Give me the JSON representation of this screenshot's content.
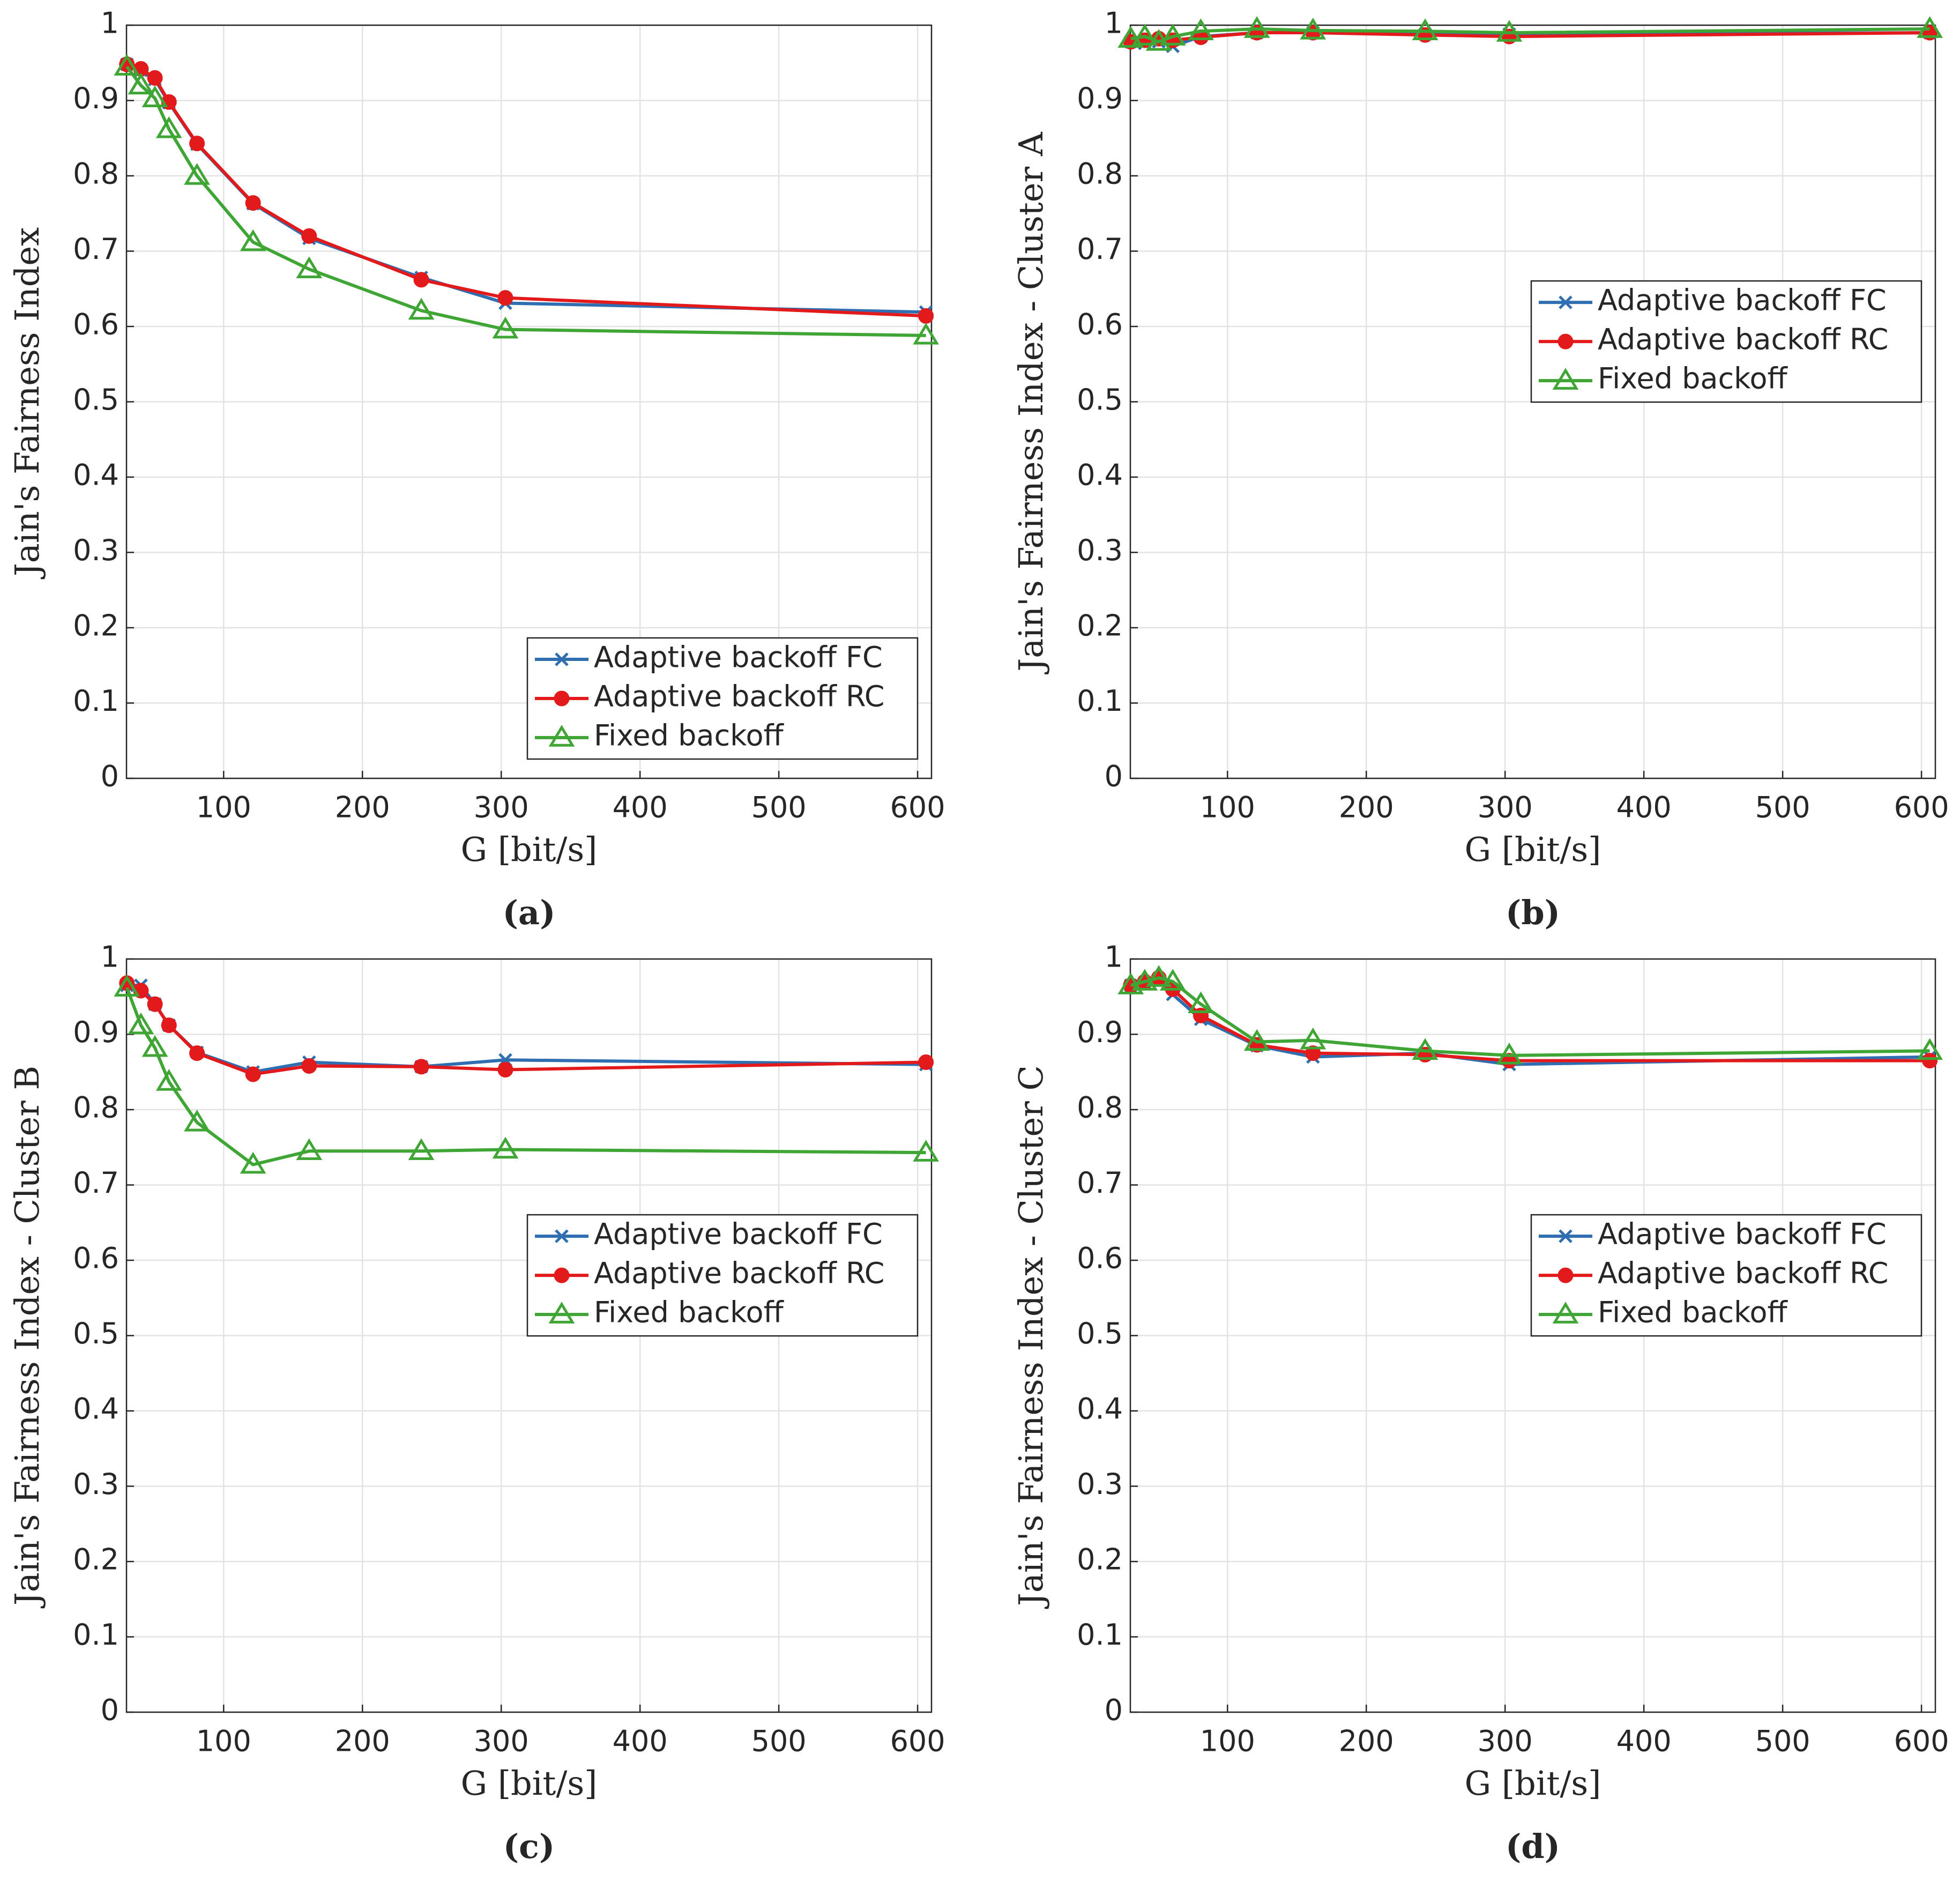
{
  "chart_data": [
    {
      "type": "line",
      "caption": "(a)",
      "xlabel": "G [bit/s]",
      "ylabel": "Jain's Fairness Index",
      "x": [
        30.3,
        40.4,
        50.5,
        60.6,
        80.8,
        121.2,
        161.6,
        242.4,
        303,
        606
      ],
      "series": [
        {
          "name": "Adaptive backoff FC",
          "color": "#2f6eb0",
          "marker": "x",
          "values": [
            0.948,
            0.94,
            0.928,
            0.897,
            0.842,
            0.763,
            0.717,
            0.665,
            0.631,
            0.619
          ]
        },
        {
          "name": "Adaptive backoff RC",
          "color": "#e31a1c",
          "marker": "circle",
          "values": [
            0.948,
            0.942,
            0.93,
            0.898,
            0.843,
            0.764,
            0.72,
            0.662,
            0.638,
            0.614
          ]
        },
        {
          "name": "Fixed backoff",
          "color": "#3fa535",
          "marker": "triangle",
          "values": [
            0.945,
            0.92,
            0.903,
            0.862,
            0.8,
            0.712,
            0.676,
            0.621,
            0.596,
            0.588
          ]
        }
      ],
      "xlim": [
        30,
        610
      ],
      "ylim": [
        0,
        1
      ],
      "xticks": [
        100,
        200,
        300,
        400,
        500,
        600
      ],
      "yticks": [
        0,
        0.1,
        0.2,
        0.3,
        0.4,
        0.5,
        0.6,
        0.7,
        0.8,
        0.9,
        1
      ],
      "grid": true,
      "legend": "lower right"
    },
    {
      "type": "line",
      "caption": "(b)",
      "xlabel": "G [bit/s]",
      "ylabel": "Jain's Fairness Index - Cluster A",
      "x": [
        30.3,
        40.4,
        50.5,
        60.6,
        80.8,
        121.2,
        161.6,
        242.4,
        303,
        606
      ],
      "series": [
        {
          "name": "Adaptive backoff FC",
          "color": "#2f6eb0",
          "marker": "x",
          "values": [
            0.978,
            0.976,
            0.978,
            0.972,
            0.985,
            0.99,
            0.99,
            0.988,
            0.988,
            0.99
          ]
        },
        {
          "name": "Adaptive backoff RC",
          "color": "#e31a1c",
          "marker": "circle",
          "values": [
            0.978,
            0.98,
            0.982,
            0.98,
            0.984,
            0.99,
            0.99,
            0.987,
            0.985,
            0.99
          ]
        },
        {
          "name": "Fixed backoff",
          "color": "#3fa535",
          "marker": "triangle",
          "values": [
            0.982,
            0.985,
            0.978,
            0.985,
            0.992,
            0.995,
            0.993,
            0.992,
            0.99,
            0.995
          ]
        }
      ],
      "xlim": [
        30,
        610
      ],
      "ylim": [
        0,
        1
      ],
      "xticks": [
        100,
        200,
        300,
        400,
        500,
        600
      ],
      "yticks": [
        0,
        0.1,
        0.2,
        0.3,
        0.4,
        0.5,
        0.6,
        0.7,
        0.8,
        0.9,
        1
      ],
      "grid": true,
      "legend": "center right"
    },
    {
      "type": "line",
      "caption": "(c)",
      "xlabel": "G [bit/s]",
      "ylabel": "Jain's Fairness Index - Cluster B",
      "x": [
        30.3,
        40.4,
        50.5,
        60.6,
        80.8,
        121.2,
        161.6,
        242.4,
        303,
        606
      ],
      "series": [
        {
          "name": "Adaptive backoff FC",
          "color": "#2f6eb0",
          "marker": "x",
          "values": [
            0.965,
            0.965,
            0.94,
            0.912,
            0.876,
            0.85,
            0.863,
            0.857,
            0.866,
            0.86
          ]
        },
        {
          "name": "Adaptive backoff RC",
          "color": "#e31a1c",
          "marker": "circle",
          "values": [
            0.968,
            0.958,
            0.94,
            0.912,
            0.875,
            0.847,
            0.858,
            0.857,
            0.853,
            0.863
          ]
        },
        {
          "name": "Fixed backoff",
          "color": "#3fa535",
          "marker": "triangle",
          "values": [
            0.962,
            0.912,
            0.882,
            0.837,
            0.783,
            0.727,
            0.745,
            0.745,
            0.747,
            0.743
          ]
        }
      ],
      "xlim": [
        30,
        610
      ],
      "ylim": [
        0,
        1
      ],
      "xticks": [
        100,
        200,
        300,
        400,
        500,
        600
      ],
      "yticks": [
        0,
        0.1,
        0.2,
        0.3,
        0.4,
        0.5,
        0.6,
        0.7,
        0.8,
        0.9,
        1
      ],
      "grid": true,
      "legend": "center right"
    },
    {
      "type": "line",
      "caption": "(d)",
      "xlabel": "G [bit/s]",
      "ylabel": "Jain's Fairness Index - Cluster C",
      "x": [
        30.3,
        40.4,
        50.5,
        60.6,
        80.8,
        121.2,
        161.6,
        242.4,
        303,
        606
      ],
      "series": [
        {
          "name": "Adaptive backoff FC",
          "color": "#2f6eb0",
          "marker": "x",
          "values": [
            0.965,
            0.968,
            0.97,
            0.953,
            0.92,
            0.885,
            0.87,
            0.875,
            0.86,
            0.87
          ]
        },
        {
          "name": "Adaptive backoff RC",
          "color": "#e31a1c",
          "marker": "circle",
          "values": [
            0.965,
            0.97,
            0.975,
            0.96,
            0.925,
            0.886,
            0.875,
            0.873,
            0.865,
            0.865
          ]
        },
        {
          "name": "Fixed backoff",
          "color": "#3fa535",
          "marker": "triangle",
          "values": [
            0.965,
            0.97,
            0.975,
            0.97,
            0.94,
            0.89,
            0.892,
            0.878,
            0.872,
            0.878
          ]
        }
      ],
      "xlim": [
        30,
        610
      ],
      "ylim": [
        0,
        1
      ],
      "xticks": [
        100,
        200,
        300,
        400,
        500,
        600
      ],
      "yticks": [
        0,
        0.1,
        0.2,
        0.3,
        0.4,
        0.5,
        0.6,
        0.7,
        0.8,
        0.9,
        1
      ],
      "grid": true,
      "legend": "center right"
    }
  ]
}
